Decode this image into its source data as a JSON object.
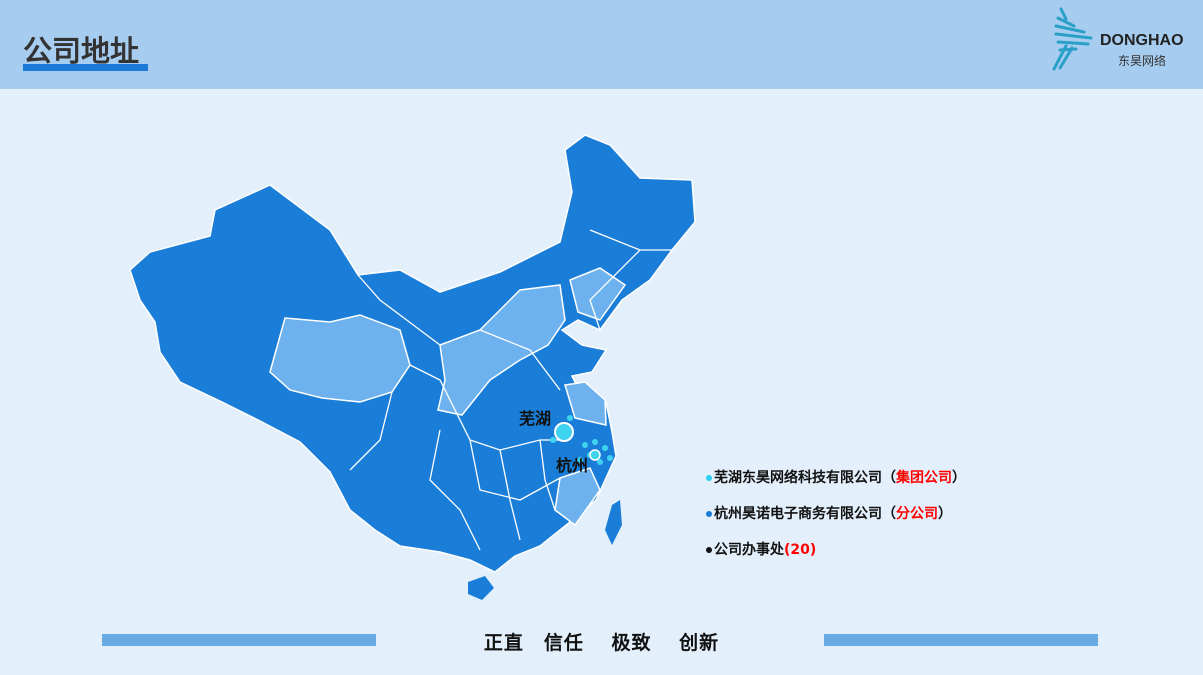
{
  "header": {
    "title": "公司地址",
    "logo_en": "DONGHAO",
    "logo_cn": "东昊网络"
  },
  "map": {
    "cities": [
      {
        "name": "芜湖"
      },
      {
        "name": "杭州"
      }
    ],
    "colors": {
      "province": "#1a7ed8",
      "highlight": "#6db1ee",
      "border": "#ffffff",
      "marker": "#3fd3f0"
    }
  },
  "legend": [
    {
      "text": "芜湖东昊网络科技有限公司（",
      "tag": "集团公司",
      "close": "）",
      "dot": "#2ad0f5"
    },
    {
      "text": "杭州昊诺电子商务有限公司（",
      "tag": "分公司",
      "close": "）",
      "dot": "#1a7ad6"
    },
    {
      "text": "公司办事处",
      "tag": "(20)",
      "close": "",
      "dot": "#111111"
    }
  ],
  "footer": {
    "motto": "正直　信任　 极致　 创新"
  }
}
